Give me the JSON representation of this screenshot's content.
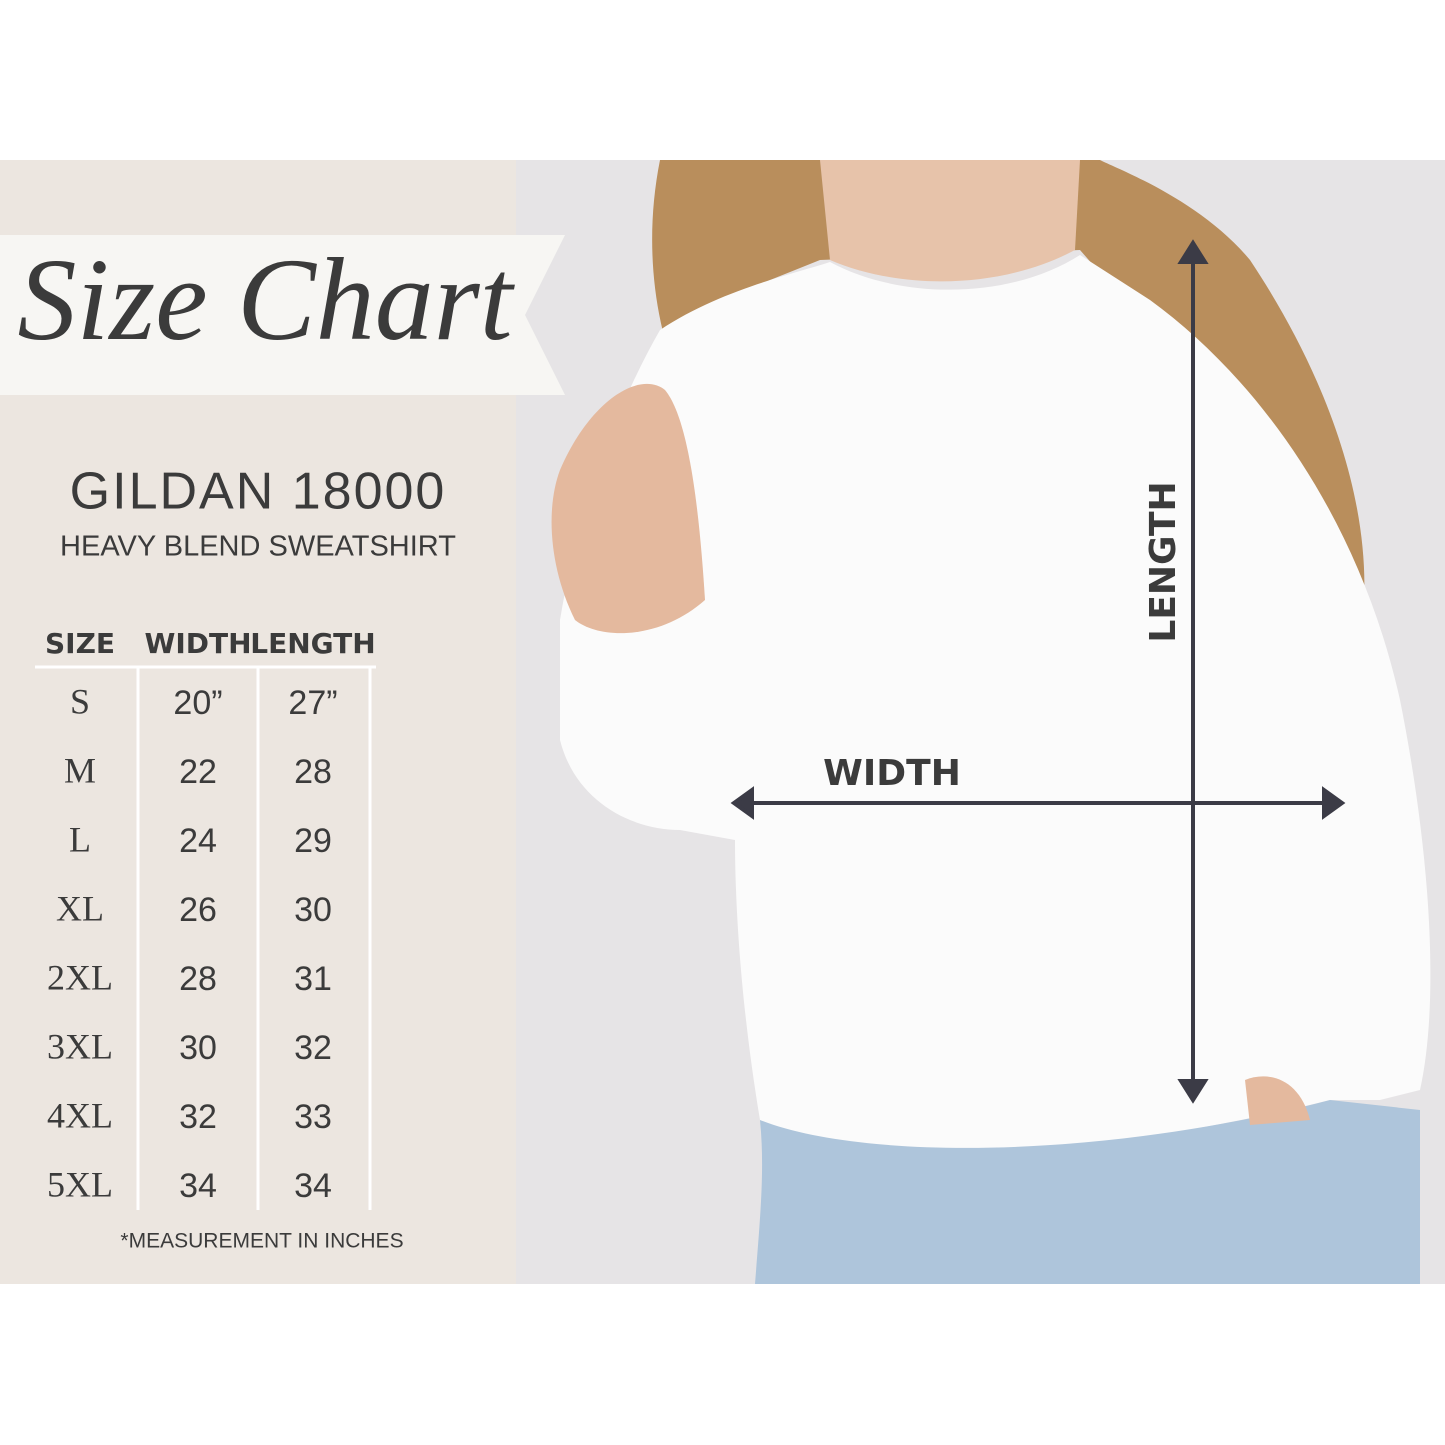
{
  "title": "Size Chart",
  "product": {
    "name": "GILDAN 18000",
    "description": "HEAVY BLEND SWEATSHIRT"
  },
  "table": {
    "headers": [
      "SIZE",
      "WIDTH",
      "LENGTH"
    ],
    "rows": [
      [
        "S",
        "20”",
        "27”"
      ],
      [
        "M",
        22,
        28
      ],
      [
        "L",
        24,
        29
      ],
      [
        "XL",
        26,
        30
      ],
      [
        "2XL",
        28,
        31
      ],
      [
        "3XL",
        30,
        32
      ],
      [
        "4XL",
        32,
        33
      ],
      [
        "5XL",
        34,
        34
      ]
    ]
  },
  "footnote": "*MEASUREMENT IN INCHES",
  "photo": {
    "width_label": "WIDTH",
    "length_label": "LENGTH"
  }
}
